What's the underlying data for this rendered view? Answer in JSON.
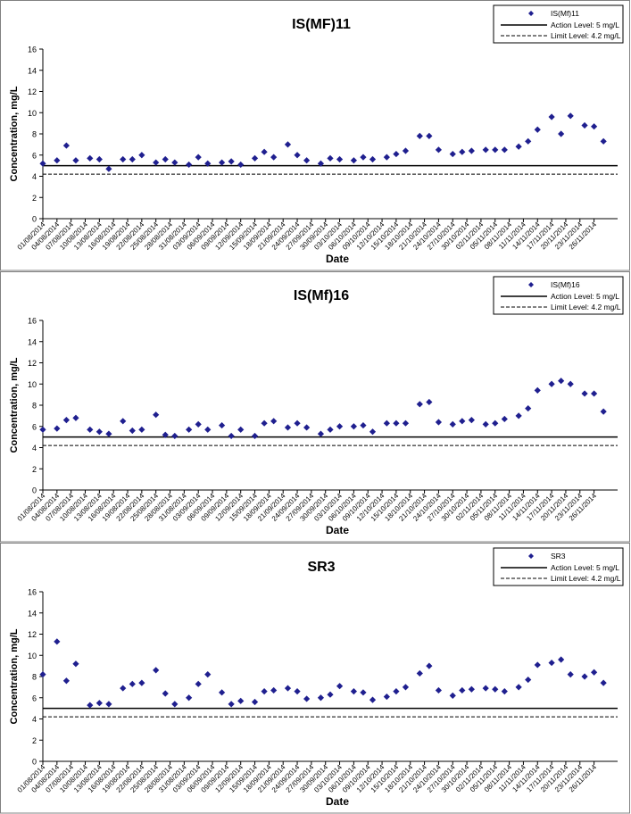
{
  "x_tick_labels": [
    "01/08/2014",
    "04/08/2014",
    "07/08/2014",
    "10/08/2014",
    "13/08/2014",
    "16/08/2014",
    "19/08/2014",
    "22/08/2014",
    "25/08/2014",
    "28/08/2014",
    "31/08/2014",
    "03/09/2014",
    "06/09/2014",
    "09/09/2014",
    "12/09/2014",
    "15/09/2014",
    "18/09/2014",
    "21/09/2014",
    "24/09/2014",
    "27/09/2014",
    "30/09/2014",
    "03/10/2014",
    "06/10/2014",
    "09/10/2014",
    "12/10/2014",
    "15/10/2014",
    "18/10/2014",
    "21/10/2014",
    "24/10/2014",
    "27/10/2014",
    "30/10/2014",
    "02/11/2014",
    "05/11/2014",
    "08/11/2014",
    "11/11/2014",
    "14/11/2014",
    "17/11/2014",
    "20/11/2014",
    "23/11/2014",
    "26/11/2014"
  ],
  "colors": {
    "marker": "#1f1f8f",
    "line": "#000000",
    "border": "#808080"
  },
  "chart_data": [
    {
      "type": "scatter",
      "title": "IS(MF)11",
      "xlabel": "Date",
      "ylabel": "Concentration, mg/L",
      "ylim": [
        0,
        16
      ],
      "yticks": [
        0,
        2,
        4,
        6,
        8,
        10,
        12,
        14,
        16
      ],
      "xlim": [
        "01/08/2014",
        "01/12/2014"
      ],
      "grid": false,
      "legend_position": "top-right",
      "legend": [
        "IS(Mf)11",
        "Action Level: 5 mg/L",
        "Limit Level: 4.2 mg/L"
      ],
      "reference_lines": [
        {
          "name": "Action Level: 5 mg/L",
          "value": 5,
          "style": "solid"
        },
        {
          "name": "Limit Level: 4.2 mg/L",
          "value": 4.2,
          "style": "dashed"
        }
      ],
      "series": [
        {
          "name": "IS(Mf)11",
          "points": [
            [
              "01/08/2014",
              5.2
            ],
            [
              "04/08/2014",
              5.5
            ],
            [
              "06/08/2014",
              6.9
            ],
            [
              "08/08/2014",
              5.5
            ],
            [
              "11/08/2014",
              5.7
            ],
            [
              "13/08/2014",
              5.6
            ],
            [
              "15/08/2014",
              4.7
            ],
            [
              "18/08/2014",
              5.6
            ],
            [
              "20/08/2014",
              5.6
            ],
            [
              "22/08/2014",
              6.0
            ],
            [
              "25/08/2014",
              5.3
            ],
            [
              "27/08/2014",
              5.6
            ],
            [
              "29/08/2014",
              5.3
            ],
            [
              "01/09/2014",
              5.1
            ],
            [
              "03/09/2014",
              5.8
            ],
            [
              "05/09/2014",
              5.2
            ],
            [
              "08/09/2014",
              5.3
            ],
            [
              "10/09/2014",
              5.4
            ],
            [
              "12/09/2014",
              5.1
            ],
            [
              "15/09/2014",
              5.7
            ],
            [
              "17/09/2014",
              6.3
            ],
            [
              "19/09/2014",
              5.8
            ],
            [
              "22/09/2014",
              7.0
            ],
            [
              "24/09/2014",
              6.0
            ],
            [
              "26/09/2014",
              5.5
            ],
            [
              "29/09/2014",
              5.2
            ],
            [
              "01/10/2014",
              5.7
            ],
            [
              "03/10/2014",
              5.6
            ],
            [
              "06/10/2014",
              5.5
            ],
            [
              "08/10/2014",
              5.8
            ],
            [
              "10/10/2014",
              5.6
            ],
            [
              "13/10/2014",
              5.8
            ],
            [
              "15/10/2014",
              6.1
            ],
            [
              "17/10/2014",
              6.4
            ],
            [
              "20/10/2014",
              7.8
            ],
            [
              "22/10/2014",
              7.8
            ],
            [
              "24/10/2014",
              6.5
            ],
            [
              "27/10/2014",
              6.1
            ],
            [
              "29/10/2014",
              6.3
            ],
            [
              "31/10/2014",
              6.4
            ],
            [
              "03/11/2014",
              6.5
            ],
            [
              "05/11/2014",
              6.5
            ],
            [
              "07/11/2014",
              6.5
            ],
            [
              "10/11/2014",
              6.8
            ],
            [
              "12/11/2014",
              7.3
            ],
            [
              "14/11/2014",
              8.4
            ],
            [
              "17/11/2014",
              9.6
            ],
            [
              "19/11/2014",
              8.0
            ],
            [
              "21/11/2014",
              9.7
            ],
            [
              "24/11/2014",
              8.8
            ],
            [
              "26/11/2014",
              8.7
            ],
            [
              "28/11/2014",
              7.3
            ]
          ]
        }
      ]
    },
    {
      "type": "scatter",
      "title": "IS(Mf)16",
      "xlabel": "Date",
      "ylabel": "Concentration, mg/L",
      "ylim": [
        0,
        16
      ],
      "yticks": [
        0,
        2,
        4,
        6,
        8,
        10,
        12,
        14,
        16
      ],
      "xlim": [
        "01/08/2014",
        "01/12/2014"
      ],
      "grid": false,
      "legend_position": "top-right",
      "legend": [
        "IS(Mf)16",
        "Action Level: 5 mg/L",
        "Limit Level: 4.2 mg/L"
      ],
      "reference_lines": [
        {
          "name": "Action Level: 5 mg/L",
          "value": 5,
          "style": "solid"
        },
        {
          "name": "Limit Level: 4.2 mg/L",
          "value": 4.2,
          "style": "dashed"
        }
      ],
      "series": [
        {
          "name": "IS(Mf)16",
          "points": [
            [
              "01/08/2014",
              5.7
            ],
            [
              "04/08/2014",
              5.8
            ],
            [
              "06/08/2014",
              6.6
            ],
            [
              "08/08/2014",
              6.8
            ],
            [
              "11/08/2014",
              5.7
            ],
            [
              "13/08/2014",
              5.5
            ],
            [
              "15/08/2014",
              5.3
            ],
            [
              "18/08/2014",
              6.5
            ],
            [
              "20/08/2014",
              5.6
            ],
            [
              "22/08/2014",
              5.7
            ],
            [
              "25/08/2014",
              7.1
            ],
            [
              "27/08/2014",
              5.2
            ],
            [
              "29/08/2014",
              5.1
            ],
            [
              "01/09/2014",
              5.7
            ],
            [
              "03/09/2014",
              6.2
            ],
            [
              "05/09/2014",
              5.7
            ],
            [
              "08/09/2014",
              6.1
            ],
            [
              "10/09/2014",
              5.1
            ],
            [
              "12/09/2014",
              5.7
            ],
            [
              "15/09/2014",
              5.1
            ],
            [
              "17/09/2014",
              6.3
            ],
            [
              "19/09/2014",
              6.5
            ],
            [
              "22/09/2014",
              5.9
            ],
            [
              "24/09/2014",
              6.3
            ],
            [
              "26/09/2014",
              5.9
            ],
            [
              "29/09/2014",
              5.3
            ],
            [
              "01/10/2014",
              5.7
            ],
            [
              "03/10/2014",
              6.0
            ],
            [
              "06/10/2014",
              6.0
            ],
            [
              "08/10/2014",
              6.1
            ],
            [
              "10/10/2014",
              5.5
            ],
            [
              "13/10/2014",
              6.3
            ],
            [
              "15/10/2014",
              6.3
            ],
            [
              "17/10/2014",
              6.3
            ],
            [
              "20/10/2014",
              8.1
            ],
            [
              "22/10/2014",
              8.3
            ],
            [
              "24/10/2014",
              6.4
            ],
            [
              "27/10/2014",
              6.2
            ],
            [
              "29/10/2014",
              6.5
            ],
            [
              "31/10/2014",
              6.6
            ],
            [
              "03/11/2014",
              6.2
            ],
            [
              "05/11/2014",
              6.3
            ],
            [
              "07/11/2014",
              6.7
            ],
            [
              "10/11/2014",
              7.0
            ],
            [
              "12/11/2014",
              7.7
            ],
            [
              "14/11/2014",
              9.4
            ],
            [
              "17/11/2014",
              10.0
            ],
            [
              "19/11/2014",
              10.3
            ],
            [
              "21/11/2014",
              10.0
            ],
            [
              "24/11/2014",
              9.1
            ],
            [
              "26/11/2014",
              9.1
            ],
            [
              "28/11/2014",
              7.4
            ]
          ]
        }
      ]
    },
    {
      "type": "scatter",
      "title": "SR3",
      "xlabel": "Date",
      "ylabel": "Concentration, mg/L",
      "ylim": [
        0,
        16
      ],
      "yticks": [
        0,
        2,
        4,
        6,
        8,
        10,
        12,
        14,
        16
      ],
      "xlim": [
        "01/08/2014",
        "01/12/2014"
      ],
      "grid": false,
      "legend_position": "top-right",
      "legend": [
        "SR3",
        "Action Level: 5 mg/L",
        "Limit Level: 4.2 mg/L"
      ],
      "reference_lines": [
        {
          "name": "Action Level: 5 mg/L",
          "value": 5,
          "style": "solid"
        },
        {
          "name": "Limit Level: 4.2 mg/L",
          "value": 4.2,
          "style": "dashed"
        }
      ],
      "series": [
        {
          "name": "SR3",
          "points": [
            [
              "01/08/2014",
              8.2
            ],
            [
              "04/08/2014",
              11.3
            ],
            [
              "06/08/2014",
              7.6
            ],
            [
              "08/08/2014",
              9.2
            ],
            [
              "11/08/2014",
              5.3
            ],
            [
              "13/08/2014",
              5.5
            ],
            [
              "15/08/2014",
              5.4
            ],
            [
              "18/08/2014",
              6.9
            ],
            [
              "20/08/2014",
              7.3
            ],
            [
              "22/08/2014",
              7.4
            ],
            [
              "25/08/2014",
              8.6
            ],
            [
              "27/08/2014",
              6.4
            ],
            [
              "29/08/2014",
              5.4
            ],
            [
              "01/09/2014",
              6.0
            ],
            [
              "03/09/2014",
              7.3
            ],
            [
              "05/09/2014",
              8.2
            ],
            [
              "08/09/2014",
              6.5
            ],
            [
              "10/09/2014",
              5.4
            ],
            [
              "12/09/2014",
              5.7
            ],
            [
              "15/09/2014",
              5.6
            ],
            [
              "17/09/2014",
              6.6
            ],
            [
              "19/09/2014",
              6.7
            ],
            [
              "22/09/2014",
              6.9
            ],
            [
              "24/09/2014",
              6.6
            ],
            [
              "26/09/2014",
              5.9
            ],
            [
              "29/09/2014",
              6.0
            ],
            [
              "01/10/2014",
              6.3
            ],
            [
              "03/10/2014",
              7.1
            ],
            [
              "06/10/2014",
              6.6
            ],
            [
              "08/10/2014",
              6.5
            ],
            [
              "10/10/2014",
              5.8
            ],
            [
              "13/10/2014",
              6.1
            ],
            [
              "15/10/2014",
              6.6
            ],
            [
              "17/10/2014",
              7.0
            ],
            [
              "20/10/2014",
              8.3
            ],
            [
              "22/10/2014",
              9.0
            ],
            [
              "24/10/2014",
              6.7
            ],
            [
              "27/10/2014",
              6.2
            ],
            [
              "29/10/2014",
              6.7
            ],
            [
              "31/10/2014",
              6.8
            ],
            [
              "03/11/2014",
              6.9
            ],
            [
              "05/11/2014",
              6.8
            ],
            [
              "07/11/2014",
              6.6
            ],
            [
              "10/11/2014",
              7.0
            ],
            [
              "12/11/2014",
              7.7
            ],
            [
              "14/11/2014",
              9.1
            ],
            [
              "17/11/2014",
              9.3
            ],
            [
              "19/11/2014",
              9.6
            ],
            [
              "21/11/2014",
              8.2
            ],
            [
              "24/11/2014",
              8.0
            ],
            [
              "26/11/2014",
              8.4
            ],
            [
              "28/11/2014",
              7.4
            ]
          ]
        }
      ]
    }
  ]
}
